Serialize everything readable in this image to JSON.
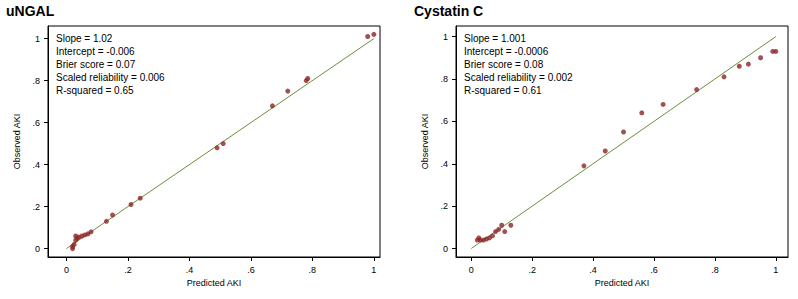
{
  "chart_data": [
    {
      "type": "scatter",
      "title": "uNGAL",
      "annotations": [
        "Slope = 1.02",
        "Intercept = -0.006",
        "Brier score = 0.07",
        "Scaled reliability = 0.006",
        "R-squared = 0.65"
      ],
      "x_label": "Predicted AKI",
      "y_label": "Observed AKI",
      "series": [
        {
          "type": "scatter",
          "color": "#8b2525",
          "marker": "circle",
          "x": [
            0.02,
            0.02,
            0.025,
            0.03,
            0.03,
            0.035,
            0.04,
            0.05,
            0.06,
            0.07,
            0.08,
            0.13,
            0.15,
            0.21,
            0.24,
            0.49,
            0.51,
            0.67,
            0.72,
            0.78,
            0.785,
            0.98,
            1.0
          ],
          "values": [
            0.0,
            0.01,
            0.02,
            0.04,
            0.06,
            0.05,
            0.055,
            0.06,
            0.065,
            0.07,
            0.08,
            0.13,
            0.16,
            0.21,
            0.24,
            0.48,
            0.5,
            0.68,
            0.75,
            0.8,
            0.81,
            1.01,
            1.02
          ]
        },
        {
          "type": "line",
          "color": "#6b8e3a",
          "line_style": "solid",
          "x": [
            0,
            1
          ],
          "values": [
            0,
            1
          ]
        }
      ],
      "xlim": [
        -0.06,
        1.02
      ],
      "ylim": [
        -0.04,
        1.06
      ],
      "xticks": [
        0,
        {
          "value": 0.2,
          "label": ".2"
        },
        {
          "value": 0.4,
          "label": ".4"
        },
        {
          "value": 0.6,
          "label": ".6"
        },
        {
          "value": 0.8,
          "label": ".8"
        },
        1
      ],
      "yticks": [
        0,
        {
          "value": 0.2,
          "label": ".2"
        },
        {
          "value": 0.4,
          "label": ".4"
        },
        {
          "value": 0.6,
          "label": ".6"
        },
        {
          "value": 0.8,
          "label": ".8"
        },
        1
      ],
      "grid": false
    },
    {
      "type": "scatter",
      "title": "Cystatin C",
      "annotations": [
        "Slope = 1.001",
        "Intercept = -0.0006",
        "Brier score = 0.08",
        "Scaled reliability = 0.002",
        "R-squared = 0.61"
      ],
      "x_label": "Predicted AKI",
      "y_label": "Observed AKI",
      "series": [
        {
          "type": "scatter",
          "color": "#8b2525",
          "marker": "circle",
          "x": [
            0.02,
            0.025,
            0.03,
            0.04,
            0.05,
            0.06,
            0.07,
            0.08,
            0.09,
            0.1,
            0.11,
            0.13,
            0.37,
            0.44,
            0.5,
            0.56,
            0.63,
            0.74,
            0.83,
            0.88,
            0.91,
            0.95,
            0.99,
            1.0
          ],
          "values": [
            0.04,
            0.05,
            0.04,
            0.04,
            0.045,
            0.05,
            0.06,
            0.08,
            0.09,
            0.11,
            0.08,
            0.11,
            0.39,
            0.46,
            0.55,
            0.64,
            0.68,
            0.75,
            0.81,
            0.86,
            0.87,
            0.9,
            0.93,
            0.93
          ]
        },
        {
          "type": "line",
          "color": "#6b8e3a",
          "line_style": "solid",
          "x": [
            0,
            1
          ],
          "values": [
            0,
            1
          ]
        }
      ],
      "xlim": [
        -0.05,
        1.04
      ],
      "ylim": [
        -0.04,
        1.05
      ],
      "xticks": [
        0,
        {
          "value": 0.2,
          "label": ".2"
        },
        {
          "value": 0.4,
          "label": ".4"
        },
        {
          "value": 0.6,
          "label": ".6"
        },
        {
          "value": 0.8,
          "label": ".8"
        },
        1
      ],
      "yticks": [
        0,
        {
          "value": 0.2,
          "label": ".2"
        },
        {
          "value": 0.4,
          "label": ".4"
        },
        {
          "value": 0.6,
          "label": ".6"
        },
        {
          "value": 0.8,
          "label": ".8"
        },
        1
      ],
      "grid": false
    }
  ]
}
